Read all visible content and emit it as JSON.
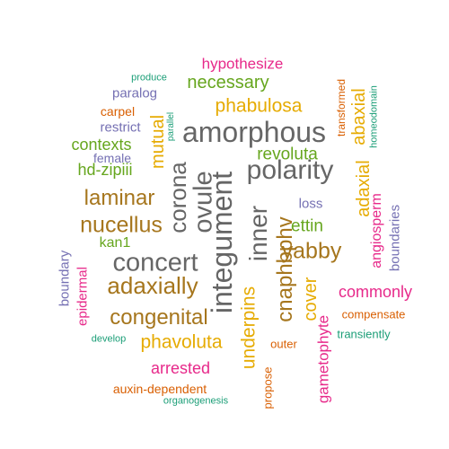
{
  "palette": {
    "teal": "#1b9e77",
    "orange": "#d95f02",
    "purple": "#7570b3",
    "magenta": "#e7298a",
    "green": "#66a61e",
    "gold": "#e6ab02",
    "brown": "#a6761d",
    "gray": "#666666"
  },
  "words": [
    {
      "text": "amorphous",
      "color": "gray",
      "weight": 32
    },
    {
      "text": "integument",
      "color": "gray",
      "weight": 32
    },
    {
      "text": "polarity",
      "color": "gray",
      "weight": 30
    },
    {
      "text": "concert",
      "color": "gray",
      "weight": 29
    },
    {
      "text": "ovule",
      "color": "gray",
      "weight": 29
    },
    {
      "text": "inner",
      "color": "gray",
      "weight": 28
    },
    {
      "text": "corona",
      "color": "gray",
      "weight": 26
    },
    {
      "text": "adaxially",
      "color": "brown",
      "weight": 26
    },
    {
      "text": "nucellus",
      "color": "brown",
      "weight": 25
    },
    {
      "text": "yabby",
      "color": "brown",
      "weight": 25
    },
    {
      "text": "laminar",
      "color": "brown",
      "weight": 24
    },
    {
      "text": "congenital",
      "color": "brown",
      "weight": 24
    },
    {
      "text": "cnaphbphv",
      "color": "brown",
      "weight": 24
    },
    {
      "text": "phabulosa",
      "color": "gold",
      "weight": 21
    },
    {
      "text": "abaxial",
      "color": "gold",
      "weight": 20
    },
    {
      "text": "phavoluta",
      "color": "gold",
      "weight": 21
    },
    {
      "text": "underpins",
      "color": "gold",
      "weight": 21
    },
    {
      "text": "necessary",
      "color": "green",
      "weight": 20
    },
    {
      "text": "adaxial",
      "color": "gold",
      "weight": 20
    },
    {
      "text": "mutual",
      "color": "gold",
      "weight": 20
    },
    {
      "text": "cover",
      "color": "gold",
      "weight": 20
    },
    {
      "text": "revoluta",
      "color": "green",
      "weight": 19
    },
    {
      "text": "ettin",
      "color": "green",
      "weight": 19
    },
    {
      "text": "contexts",
      "color": "green",
      "weight": 18
    },
    {
      "text": "hd-zipiii",
      "color": "green",
      "weight": 18
    },
    {
      "text": "commonly",
      "color": "magenta",
      "weight": 18
    },
    {
      "text": "arrested",
      "color": "magenta",
      "weight": 18
    },
    {
      "text": "hypothesize",
      "color": "magenta",
      "weight": 17
    },
    {
      "text": "gametophyte",
      "color": "magenta",
      "weight": 17
    },
    {
      "text": "angiosperm",
      "color": "magenta",
      "weight": 16
    },
    {
      "text": "kan1",
      "color": "green",
      "weight": 16
    },
    {
      "text": "epidermal",
      "color": "magenta",
      "weight": 15
    },
    {
      "text": "restrict",
      "color": "purple",
      "weight": 15
    },
    {
      "text": "paralog",
      "color": "purple",
      "weight": 15
    },
    {
      "text": "boundaries",
      "color": "purple",
      "weight": 15
    },
    {
      "text": "boundary",
      "color": "purple",
      "weight": 15
    },
    {
      "text": "loss",
      "color": "purple",
      "weight": 15
    },
    {
      "text": "carpel",
      "color": "orange",
      "weight": 14
    },
    {
      "text": "auxin-dependent",
      "color": "orange",
      "weight": 14
    },
    {
      "text": "transformed",
      "color": "orange",
      "weight": 12
    },
    {
      "text": "compensate",
      "color": "orange",
      "weight": 13
    },
    {
      "text": "propose",
      "color": "orange",
      "weight": 13
    },
    {
      "text": "outer",
      "color": "orange",
      "weight": 13
    },
    {
      "text": "female",
      "color": "purple",
      "weight": 14
    },
    {
      "text": "transiently",
      "color": "teal",
      "weight": 13
    },
    {
      "text": "homeodomain",
      "color": "teal",
      "weight": 11
    },
    {
      "text": "develop",
      "color": "teal",
      "weight": 11
    },
    {
      "text": "produce",
      "color": "teal",
      "weight": 11
    },
    {
      "text": "parallel",
      "color": "teal",
      "weight": 10
    },
    {
      "text": "organogenesis",
      "color": "teal",
      "weight": 11
    }
  ]
}
